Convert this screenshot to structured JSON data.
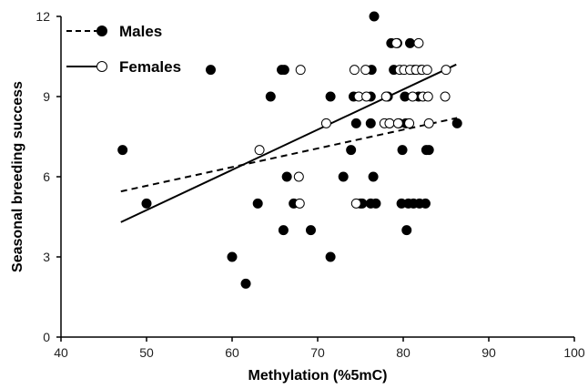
{
  "chart_data": {
    "type": "scatter",
    "xlabel": "Methylation (%5mC)",
    "ylabel": "Seasonal breeding success",
    "xlim": [
      40,
      100
    ],
    "ylim": [
      0,
      12
    ],
    "x_ticks": [
      40,
      50,
      60,
      70,
      80,
      90,
      100
    ],
    "y_ticks": [
      0,
      3,
      6,
      9,
      12
    ],
    "grid": false,
    "legend_position": "top-left",
    "series": [
      {
        "name": "Males",
        "marker": "filled-circle",
        "line_style": "dashed",
        "fill": "#000000",
        "trend_line": {
          "x": [
            47,
            86.3
          ],
          "y": [
            5.45,
            8.2
          ]
        },
        "points": [
          [
            47.2,
            7
          ],
          [
            50,
            5
          ],
          [
            57.5,
            10
          ],
          [
            60,
            3
          ],
          [
            61.6,
            2
          ],
          [
            63,
            5
          ],
          [
            64.5,
            9
          ],
          [
            65.8,
            10
          ],
          [
            66.1,
            10
          ],
          [
            66,
            4
          ],
          [
            66.4,
            6
          ],
          [
            67.2,
            5
          ],
          [
            69.2,
            4
          ],
          [
            71.5,
            9
          ],
          [
            71.5,
            3
          ],
          [
            73,
            6
          ],
          [
            73.9,
            7
          ],
          [
            74.2,
            9
          ],
          [
            74.5,
            8
          ],
          [
            75,
            5
          ],
          [
            75.2,
            5
          ],
          [
            76.2,
            9
          ],
          [
            76.3,
            10
          ],
          [
            76.2,
            8
          ],
          [
            76.5,
            6
          ],
          [
            76.2,
            5
          ],
          [
            76.8,
            5
          ],
          [
            76.6,
            12
          ],
          [
            78.2,
            9
          ],
          [
            78.4,
            8
          ],
          [
            78.6,
            11
          ],
          [
            78.9,
            10
          ],
          [
            79.3,
            11
          ],
          [
            79.5,
            8
          ],
          [
            79.9,
            7
          ],
          [
            79.8,
            5
          ],
          [
            80.2,
            9
          ],
          [
            80.3,
            8
          ],
          [
            80.4,
            4
          ],
          [
            80.6,
            5
          ],
          [
            81.2,
            5
          ],
          [
            81.3,
            10
          ],
          [
            81.8,
            9
          ],
          [
            81.9,
            5
          ],
          [
            82.1,
            10
          ],
          [
            82.6,
            5
          ],
          [
            82.7,
            7
          ],
          [
            83,
            7
          ],
          [
            86.3,
            8
          ],
          [
            80.8,
            11
          ]
        ]
      },
      {
        "name": "Females",
        "marker": "open-circle",
        "line_style": "solid",
        "fill": "#ffffff",
        "trend_line": {
          "x": [
            47,
            86.2
          ],
          "y": [
            4.3,
            10.2
          ]
        },
        "points": [
          [
            63.2,
            7
          ],
          [
            67.8,
            6
          ],
          [
            67.9,
            5
          ],
          [
            68,
            10
          ],
          [
            71,
            8
          ],
          [
            74.3,
            10
          ],
          [
            74.5,
            5
          ],
          [
            74.8,
            9
          ],
          [
            75.6,
            10
          ],
          [
            75.7,
            9
          ],
          [
            77.8,
            8
          ],
          [
            78,
            9
          ],
          [
            78.4,
            8
          ],
          [
            79.4,
            8
          ],
          [
            79.6,
            10
          ],
          [
            80.1,
            10
          ],
          [
            80.7,
            8
          ],
          [
            80.8,
            10
          ],
          [
            81.1,
            9
          ],
          [
            81.5,
            10
          ],
          [
            81.8,
            11
          ],
          [
            82.2,
            10
          ],
          [
            82.3,
            9
          ],
          [
            82.8,
            10
          ],
          [
            82.9,
            9
          ],
          [
            83,
            8
          ],
          [
            84.9,
            9
          ],
          [
            85,
            10
          ],
          [
            79.2,
            11
          ]
        ]
      }
    ]
  }
}
